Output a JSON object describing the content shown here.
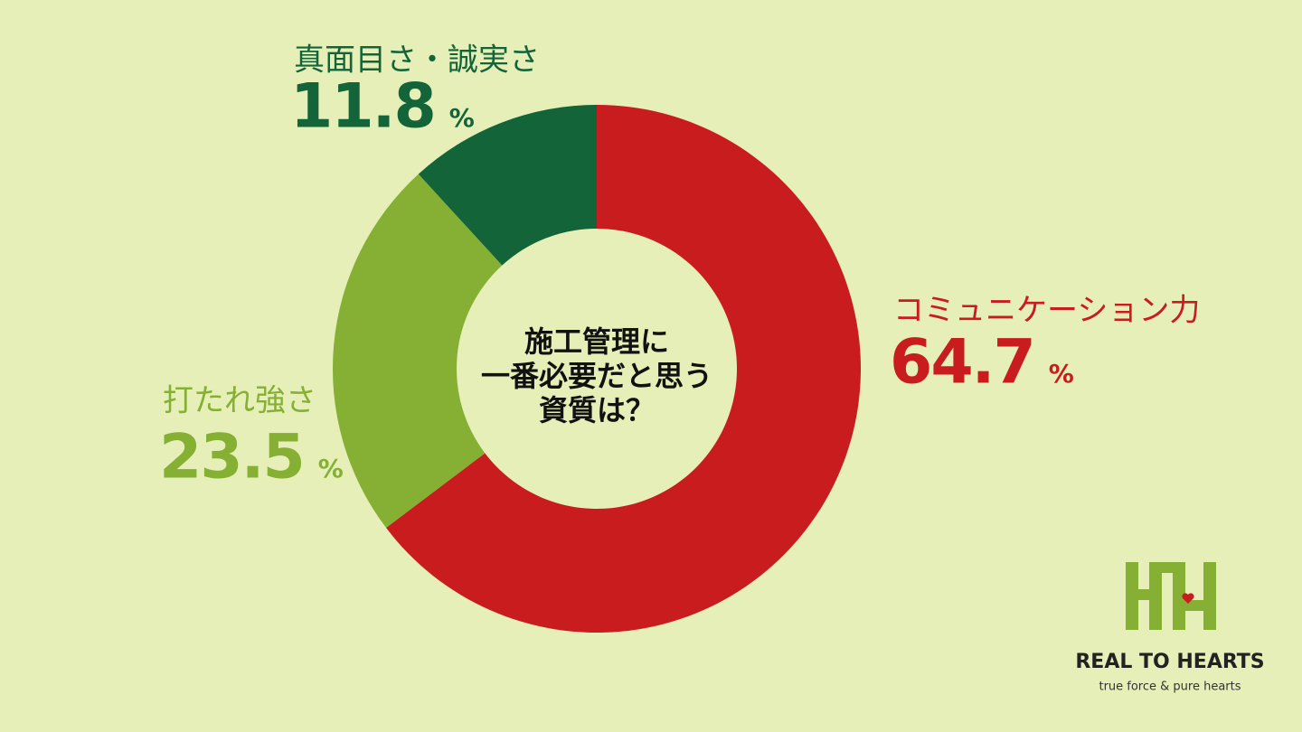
{
  "chart_data": {
    "type": "donut",
    "categories": [
      "コミュニケーション力",
      "打たれ強さ",
      "真面目さ・誠実さ"
    ],
    "values": [
      64.7,
      23.5,
      11.8
    ],
    "unit": "%",
    "colors": [
      "#c81c1f",
      "#85b034",
      "#14643a"
    ],
    "center_text": [
      "施工管理に",
      "一番必要だと思う",
      "資質は？"
    ]
  },
  "logo": {
    "name": "REAL TO HEARTS",
    "tagline": "true force & pure hearts"
  }
}
